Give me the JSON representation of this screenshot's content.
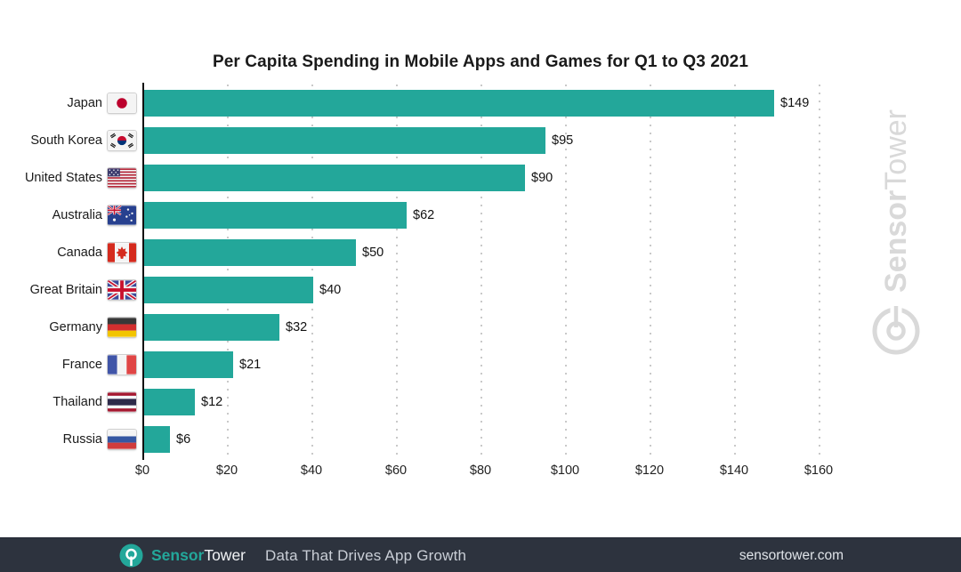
{
  "title": "Per Capita Spending in Mobile Apps and Games for Q1 to Q3 2021",
  "chart_data": {
    "type": "bar",
    "orientation": "horizontal",
    "title": "Per Capita Spending in Mobile Apps and Games for Q1 to Q3 2021",
    "categories": [
      "Japan",
      "South Korea",
      "United States",
      "Australia",
      "Canada",
      "Great Britain",
      "Germany",
      "France",
      "Thailand",
      "Russia"
    ],
    "values": [
      149,
      95,
      90,
      62,
      50,
      40,
      32,
      21,
      12,
      6
    ],
    "value_labels": [
      "$149",
      "$95",
      "$90",
      "$62",
      "$50",
      "$40",
      "$32",
      "$21",
      "$12",
      "$6"
    ],
    "flags": [
      "jp",
      "kr",
      "us",
      "au",
      "ca",
      "gb",
      "de",
      "fr",
      "th",
      "ru"
    ],
    "xlim": [
      0,
      160
    ],
    "x_ticks": [
      0,
      20,
      40,
      60,
      80,
      100,
      120,
      140,
      160
    ],
    "x_tick_labels": [
      "$0",
      "$20",
      "$40",
      "$60",
      "$80",
      "$100",
      "$120",
      "$140",
      "$160"
    ],
    "grid": "dotted-vertical",
    "legend": "none",
    "bar_color": "#23a79a"
  },
  "watermark": {
    "brand_first": "Sensor",
    "brand_second": "Tower"
  },
  "footer": {
    "brand_first": "Sensor",
    "brand_second": "Tower",
    "tagline": "Data That Drives App Growth",
    "website": "sensortower.com",
    "background": "#2d333e",
    "accent": "#23a79a"
  }
}
